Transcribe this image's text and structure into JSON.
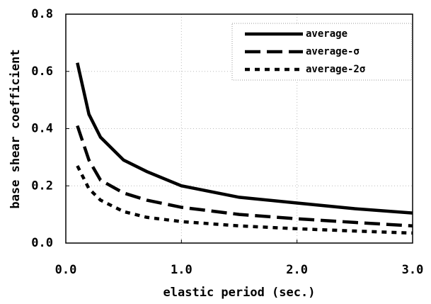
{
  "chart_data": {
    "type": "line",
    "x_label": "elastic period (sec.)",
    "y_label": "base shear coefficient",
    "x": [
      0.1,
      0.2,
      0.3,
      0.5,
      0.7,
      1.0,
      1.5,
      2.0,
      2.5,
      3.0
    ],
    "series": [
      {
        "name": "average",
        "color": "#000000",
        "dash": "solid",
        "values": [
          0.63,
          0.45,
          0.37,
          0.29,
          0.25,
          0.2,
          0.16,
          0.14,
          0.12,
          0.105
        ]
      },
      {
        "name": "average-σ",
        "color": "#000000",
        "dash": "dashed",
        "values": [
          0.41,
          0.29,
          0.22,
          0.175,
          0.15,
          0.125,
          0.1,
          0.085,
          0.072,
          0.06
        ]
      },
      {
        "name": "average-2σ",
        "color": "#000000",
        "dash": "dotted",
        "values": [
          0.27,
          0.19,
          0.15,
          0.11,
          0.09,
          0.075,
          0.06,
          0.05,
          0.042,
          0.035
        ]
      }
    ],
    "xlim": [
      0,
      3
    ],
    "ylim": [
      0,
      0.8
    ],
    "xticks": [
      {
        "value": 0,
        "label": "0.0"
      },
      {
        "value": 1,
        "label": "1.0"
      },
      {
        "value": 2,
        "label": "2.0"
      },
      {
        "value": 3,
        "label": "3.0"
      }
    ],
    "yticks": [
      {
        "value": 0,
        "label": "0.0"
      },
      0.2,
      0.4,
      0.6,
      0.8
    ],
    "grid": true,
    "legend": "upper right"
  }
}
